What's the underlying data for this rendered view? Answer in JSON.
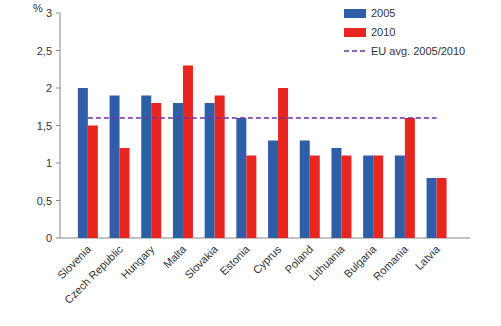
{
  "chart_data": {
    "type": "bar",
    "ylabel": "%",
    "categories": [
      "Slovenia",
      "Czech Republic",
      "Hungary",
      "Malta",
      "Slovakia",
      "Estonia",
      "Cyprus",
      "Poland",
      "Lithuania",
      "Bulgaria",
      "Romania",
      "Latvia"
    ],
    "series": [
      {
        "name": "2005",
        "color": "#2f5ea8",
        "values": [
          2.0,
          1.9,
          1.9,
          1.8,
          1.8,
          1.6,
          1.3,
          1.3,
          1.2,
          1.1,
          1.1,
          0.8
        ]
      },
      {
        "name": "2010",
        "color": "#e8251e",
        "values": [
          1.5,
          1.2,
          1.8,
          2.3,
          1.9,
          1.1,
          2.0,
          1.1,
          1.1,
          1.1,
          1.6,
          0.8
        ]
      },
      {
        "name": "EU avg. 2005/2010",
        "type": "line",
        "line_style": "dashed",
        "color": "#7030a0",
        "values": [
          1.6,
          1.6,
          1.6,
          1.6,
          1.6,
          1.6,
          1.6,
          1.6,
          1.6,
          1.6,
          1.6,
          1.6
        ]
      }
    ],
    "ylim": [
      0,
      3
    ],
    "yticks": [
      0,
      {
        "value": 0.5,
        "label": "0,5"
      },
      1,
      {
        "value": 1.5,
        "label": "1,5"
      },
      2,
      {
        "value": 2.5,
        "label": "2,5"
      },
      3
    ],
    "grid": false,
    "legend": "top-right"
  }
}
